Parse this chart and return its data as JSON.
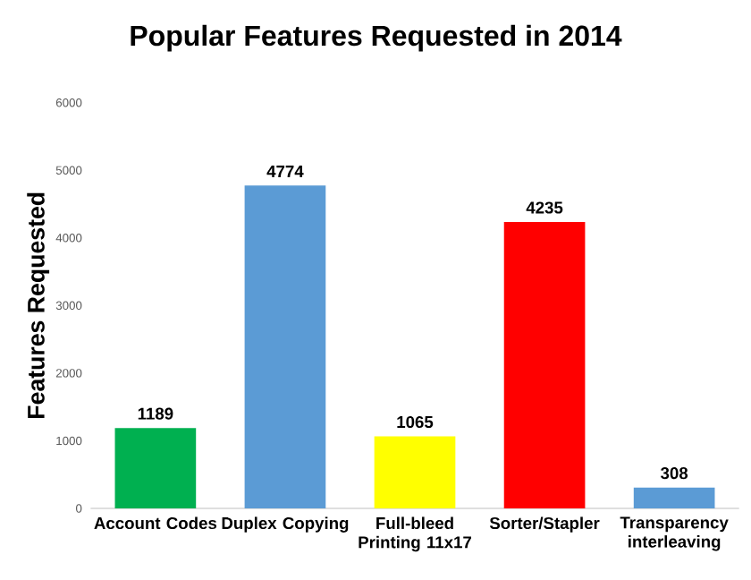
{
  "chart_data": {
    "type": "bar",
    "title": "Popular Features Requested in 2014",
    "ylabel": "Features Requested",
    "categories": [
      "Account Codes",
      "Duplex Copying",
      "Full-bleed Printing 11x17",
      "Sorter/Stapler",
      "Transparency interleaving"
    ],
    "values": [
      1189,
      4774,
      1065,
      4235,
      308
    ],
    "colors": [
      "#00b050",
      "#5b9bd5",
      "#ffff00",
      "#ff0000",
      "#5b9bd5"
    ],
    "ylim": [
      0,
      6000
    ],
    "yticks": [
      0,
      1000,
      2000,
      3000,
      4000,
      5000,
      6000
    ],
    "data_labels": true
  }
}
